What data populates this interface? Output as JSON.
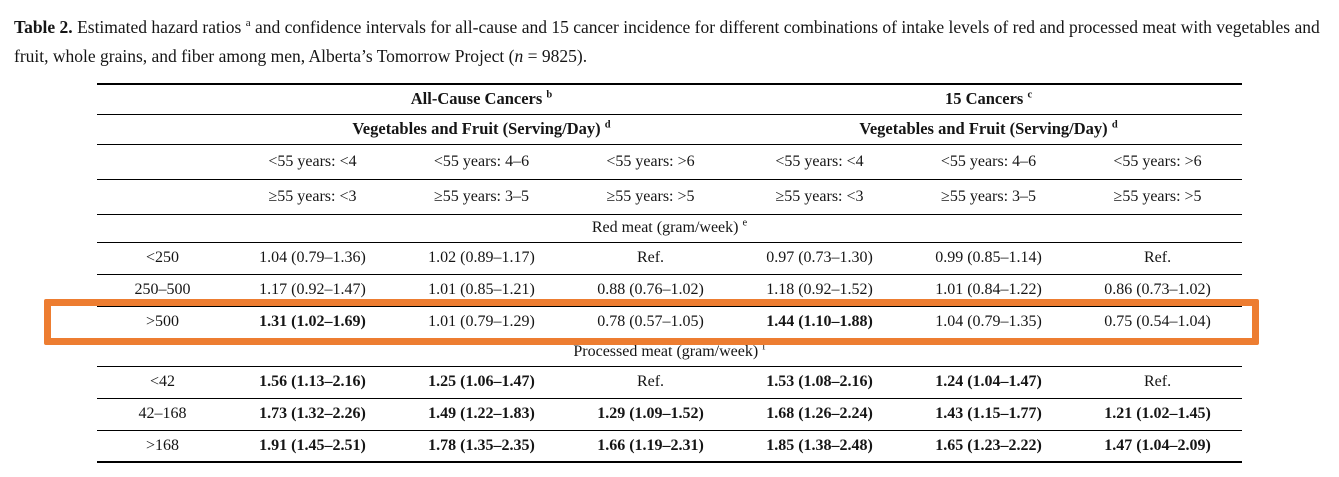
{
  "caption": {
    "segments": [
      {
        "text": "Table 2.",
        "style": "bold"
      },
      {
        "text": " Estimated hazard ratios ",
        "style": "normal"
      },
      {
        "text": "a",
        "style": "sup"
      },
      {
        "text": " and confidence intervals for all-cause and 15 cancer incidence for different combinations of intake levels of red and processed meat with vegetables and fruit, whole grains, and fiber among men, Alberta’s Tomorrow Project (",
        "style": "normal"
      },
      {
        "text": "n",
        "style": "italic"
      },
      {
        "text": " = 9825).",
        "style": "normal"
      }
    ]
  },
  "highlight": {
    "color": "#ED7D31"
  },
  "table": {
    "group_headers": [
      {
        "text": "All-Cause Cancers",
        "sup": "b"
      },
      {
        "text": "15 Cancers",
        "sup": "c"
      }
    ],
    "subgroup_headers": [
      {
        "text": "Vegetables and Fruit (Serving/Day)",
        "sup": "d"
      },
      {
        "text": "Vegetables and Fruit (Serving/Day)",
        "sup": "d"
      }
    ],
    "age_headers_row1": [
      "<55 years: <4",
      "<55 years: 4–6",
      "<55 years: >6",
      "<55 years: <4",
      "<55 years: 4–6",
      "<55 years: >6"
    ],
    "age_headers_row2": [
      "≥55 years: <3",
      "≥55 years: 3–5",
      "≥55 years: >5",
      "≥55 years: <3",
      "≥55 years: 3–5",
      "≥55 years: >5"
    ],
    "sections": [
      {
        "header": {
          "text": "Red meat (gram/week)",
          "sup": "e"
        },
        "rows": [
          {
            "label": "<250",
            "highlight": false,
            "cells": [
              {
                "text": "1.04 (0.79–1.36)",
                "bold": false
              },
              {
                "text": "1.02 (0.89–1.17)",
                "bold": false
              },
              {
                "text": "Ref.",
                "bold": false
              },
              {
                "text": "0.97 (0.73–1.30)",
                "bold": false
              },
              {
                "text": "0.99 (0.85–1.14)",
                "bold": false
              },
              {
                "text": "Ref.",
                "bold": false
              }
            ]
          },
          {
            "label": "250–500",
            "highlight": false,
            "cells": [
              {
                "text": "1.17 (0.92–1.47)",
                "bold": false
              },
              {
                "text": "1.01 (0.85–1.21)",
                "bold": false
              },
              {
                "text": "0.88 (0.76–1.02)",
                "bold": false
              },
              {
                "text": "1.18 (0.92–1.52)",
                "bold": false
              },
              {
                "text": "1.01 (0.84–1.22)",
                "bold": false
              },
              {
                "text": "0.86 (0.73–1.02)",
                "bold": false
              }
            ]
          },
          {
            "label": ">500",
            "highlight": true,
            "cells": [
              {
                "text": "1.31 (1.02–1.69)",
                "bold": true
              },
              {
                "text": "1.01 (0.79–1.29)",
                "bold": false
              },
              {
                "text": "0.78 (0.57–1.05)",
                "bold": false
              },
              {
                "text": "1.44 (1.10–1.88)",
                "bold": true
              },
              {
                "text": "1.04 (0.79–1.35)",
                "bold": false
              },
              {
                "text": "0.75 (0.54–1.04)",
                "bold": false
              }
            ]
          }
        ]
      },
      {
        "header": {
          "text": "Processed meat (gram/week)",
          "sup": "f"
        },
        "rows": [
          {
            "label": "<42",
            "highlight": false,
            "cells": [
              {
                "text": "1.56 (1.13–2.16)",
                "bold": true
              },
              {
                "text": "1.25 (1.06–1.47)",
                "bold": true
              },
              {
                "text": "Ref.",
                "bold": false
              },
              {
                "text": "1.53 (1.08–2.16)",
                "bold": true
              },
              {
                "text": "1.24 (1.04–1.47)",
                "bold": true
              },
              {
                "text": "Ref.",
                "bold": false
              }
            ]
          },
          {
            "label": "42–168",
            "highlight": false,
            "cells": [
              {
                "text": "1.73 (1.32–2.26)",
                "bold": true
              },
              {
                "text": "1.49 (1.22–1.83)",
                "bold": true
              },
              {
                "text": "1.29 (1.09–1.52)",
                "bold": true
              },
              {
                "text": "1.68 (1.26–2.24)",
                "bold": true
              },
              {
                "text": "1.43 (1.15–1.77)",
                "bold": true
              },
              {
                "text": "1.21 (1.02–1.45)",
                "bold": true
              }
            ]
          },
          {
            "label": ">168",
            "highlight": false,
            "cells": [
              {
                "text": "1.91 (1.45–2.51)",
                "bold": true
              },
              {
                "text": "1.78 (1.35–2.35)",
                "bold": true
              },
              {
                "text": "1.66 (1.19–2.31)",
                "bold": true
              },
              {
                "text": "1.85 (1.38–2.48)",
                "bold": true
              },
              {
                "text": "1.65 (1.23–2.22)",
                "bold": true
              },
              {
                "text": "1.47 (1.04–2.09)",
                "bold": true
              }
            ]
          }
        ]
      }
    ]
  }
}
